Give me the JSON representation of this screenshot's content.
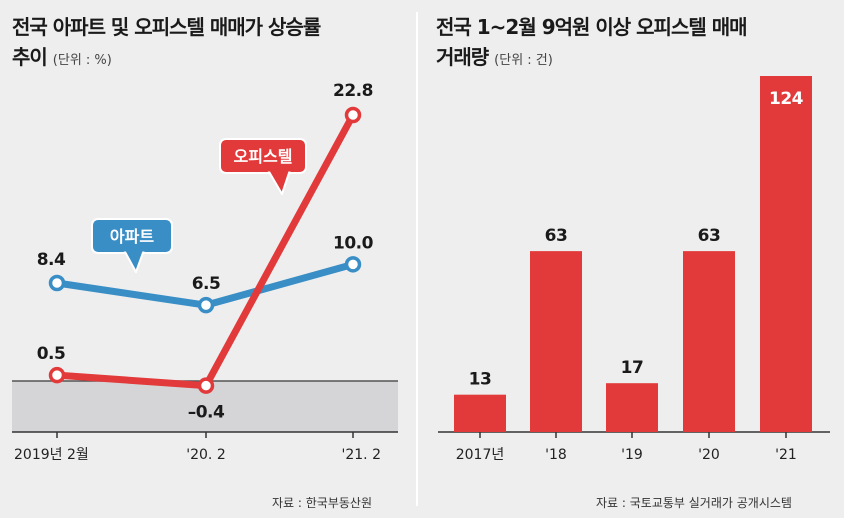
{
  "left": {
    "title_line1": "전국 아파트 및 오피스텔 매매가 상승률",
    "title_line2": "추이",
    "unit": "(단위 : %)",
    "source": "자료 : 한국부동산원"
  },
  "right": {
    "title_line1": "전국 1~2월 9억원 이상 오피스텔 매매",
    "title_line2": "거래량",
    "unit": "(단위 : 건)",
    "source": "자료 : 국토교통부 실거래가 공개시스템"
  },
  "colors": {
    "apartment": "#3a8ec6",
    "officetel": "#e23a3a",
    "bar": "#e23a3a",
    "shade": "#d5d5d7"
  },
  "chart_data": [
    {
      "type": "line",
      "categories": [
        "2019년 2월",
        "'20. 2",
        "'21. 2"
      ],
      "series": [
        {
          "name": "아파트",
          "values": [
            8.4,
            6.5,
            10.0
          ],
          "labels": [
            "8.4",
            "6.5",
            "10.0"
          ]
        },
        {
          "name": "오피스텔",
          "values": [
            0.5,
            -0.4,
            22.8
          ],
          "labels": [
            "0.5",
            "–0.4",
            "22.8"
          ]
        }
      ],
      "ylim": [
        -6,
        28.5
      ],
      "grid": false,
      "legend": "callout labels"
    },
    {
      "type": "bar",
      "categories": [
        "2017년",
        "'18",
        "'19",
        "'20",
        "'21"
      ],
      "values": [
        13,
        63,
        17,
        63,
        124
      ],
      "labels": [
        "13",
        "63",
        "17",
        "63",
        "124"
      ],
      "ylim": [
        0,
        124
      ]
    }
  ]
}
